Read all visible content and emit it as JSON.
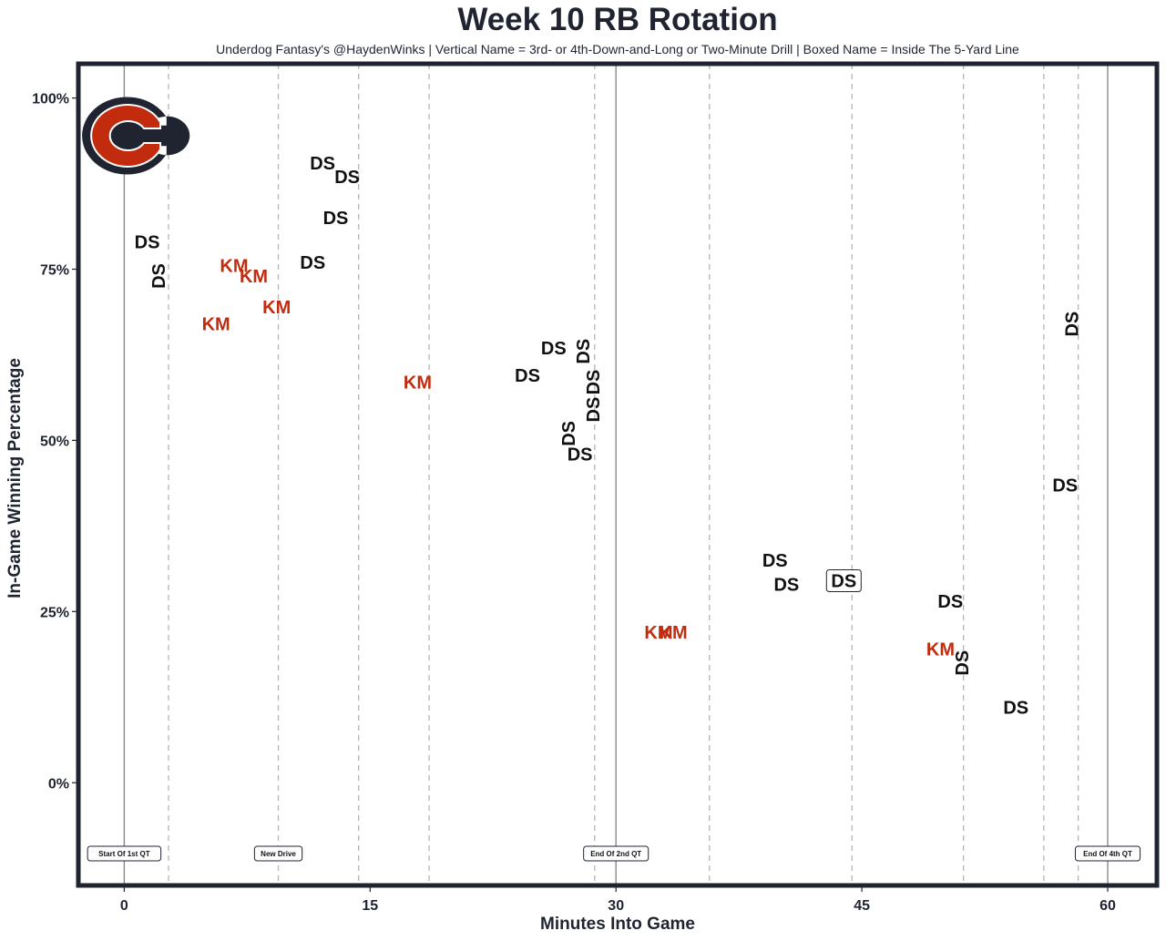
{
  "chart_data": {
    "type": "scatter",
    "title": "Week 10 RB Rotation",
    "subtitle": "Underdog Fantasy's @HaydenWinks | Vertical Name = 3rd- or 4th-Down-and-Long or Two-Minute Drill | Boxed Name = Inside The 5-Yard Line",
    "xlabel": "Minutes Into Game",
    "ylabel": "In-Game Winning Percentage",
    "xlim": [
      -2.8,
      63
    ],
    "ylim": [
      -15,
      105
    ],
    "x_ticks": [
      0,
      15,
      30,
      45,
      60
    ],
    "y_ticks": [
      0,
      25,
      50,
      75,
      100
    ],
    "y_tick_labels": [
      "0%",
      "25%",
      "50%",
      "75%",
      "100%"
    ],
    "team_logo": "chicago-bears-c-logo",
    "colors": {
      "DS": "#111111",
      "KM": "#c32b0f",
      "frame": "#1f2430"
    },
    "solid_lines": [
      0,
      30,
      60
    ],
    "dashed_lines": [
      2.7,
      9.4,
      14.3,
      18.6,
      28.7,
      35.7,
      44.4,
      51.2,
      56.1,
      58.2
    ],
    "markers": [
      {
        "x": 0,
        "label": "Start Of 1st QT"
      },
      {
        "x": 9.4,
        "label": "New Drive"
      },
      {
        "x": 30,
        "label": "End Of 2nd QT"
      },
      {
        "x": 60,
        "label": "End Of 4th QT"
      }
    ],
    "points": [
      {
        "x": 1.4,
        "y": 79,
        "label": "DS",
        "style": "normal"
      },
      {
        "x": 2.1,
        "y": 74,
        "label": "DS",
        "style": "vertical"
      },
      {
        "x": 6.7,
        "y": 75.5,
        "label": "KM",
        "style": "normal"
      },
      {
        "x": 7.9,
        "y": 74,
        "label": "KM",
        "style": "normal"
      },
      {
        "x": 9.3,
        "y": 69.5,
        "label": "KM",
        "style": "normal"
      },
      {
        "x": 5.6,
        "y": 67,
        "label": "KM",
        "style": "normal"
      },
      {
        "x": 11.5,
        "y": 76,
        "label": "DS",
        "style": "normal"
      },
      {
        "x": 12.1,
        "y": 90.5,
        "label": "DS",
        "style": "normal"
      },
      {
        "x": 13.6,
        "y": 88.5,
        "label": "DS",
        "style": "normal"
      },
      {
        "x": 12.9,
        "y": 82.5,
        "label": "DS",
        "style": "normal"
      },
      {
        "x": 17.9,
        "y": 58.5,
        "label": "KM",
        "style": "normal"
      },
      {
        "x": 24.6,
        "y": 59.5,
        "label": "DS",
        "style": "normal"
      },
      {
        "x": 26.2,
        "y": 63.5,
        "label": "DS",
        "style": "normal"
      },
      {
        "x": 28.0,
        "y": 63,
        "label": "DS",
        "style": "vertical"
      },
      {
        "x": 28.6,
        "y": 58.5,
        "label": "DS",
        "style": "vertical"
      },
      {
        "x": 28.6,
        "y": 54.5,
        "label": "DS",
        "style": "vertical"
      },
      {
        "x": 27.1,
        "y": 51,
        "label": "DS",
        "style": "vertical"
      },
      {
        "x": 27.8,
        "y": 48,
        "label": "DS",
        "style": "normal"
      },
      {
        "x": 32.6,
        "y": 22,
        "label": "KM",
        "style": "normal"
      },
      {
        "x": 33.5,
        "y": 22,
        "label": "KM",
        "style": "normal"
      },
      {
        "x": 39.7,
        "y": 32.5,
        "label": "DS",
        "style": "normal"
      },
      {
        "x": 40.4,
        "y": 29,
        "label": "DS",
        "style": "normal"
      },
      {
        "x": 43.9,
        "y": 29.5,
        "label": "DS",
        "style": "boxed"
      },
      {
        "x": 50.4,
        "y": 26.5,
        "label": "DS",
        "style": "normal"
      },
      {
        "x": 49.8,
        "y": 19.5,
        "label": "KM",
        "style": "normal"
      },
      {
        "x": 51.1,
        "y": 17.5,
        "label": "DS",
        "style": "vertical"
      },
      {
        "x": 54.4,
        "y": 11,
        "label": "DS",
        "style": "normal"
      },
      {
        "x": 57.8,
        "y": 67,
        "label": "DS",
        "style": "vertical"
      },
      {
        "x": 57.4,
        "y": 43.5,
        "label": "DS",
        "style": "normal"
      }
    ]
  }
}
